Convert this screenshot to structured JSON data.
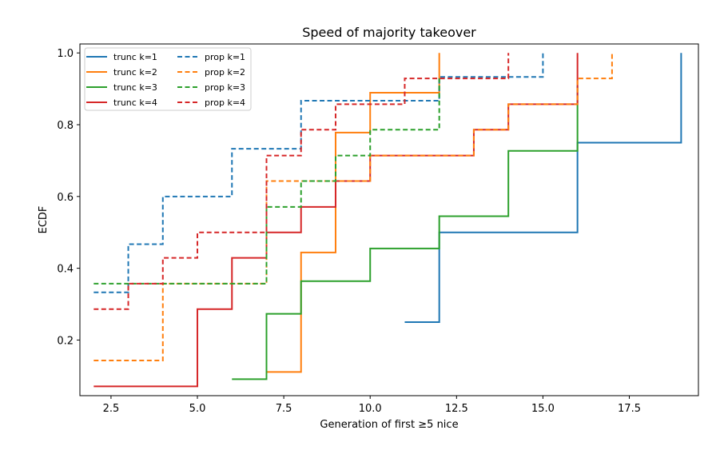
{
  "chart_data": {
    "type": "line",
    "subtype": "step-ecdf",
    "title": "Speed of majority takeover",
    "xlabel": "Generation of first ≥5 nice",
    "ylabel": "ECDF",
    "xlim": [
      1.6,
      19.5
    ],
    "ylim": [
      0.045,
      1.025
    ],
    "xticks": [
      2.5,
      5.0,
      7.5,
      10.0,
      12.5,
      15.0,
      17.5
    ],
    "xtick_labels": [
      "2.5",
      "5.0",
      "7.5",
      "10.0",
      "12.5",
      "15.0",
      "17.5"
    ],
    "yticks": [
      0.2,
      0.4,
      0.6,
      0.8,
      1.0
    ],
    "ytick_labels": [
      "0.2",
      "0.4",
      "0.6",
      "0.8",
      "1.0"
    ],
    "grid": false,
    "legend": {
      "location": "upper-left",
      "columns": 2
    },
    "series": [
      {
        "name": "trunc k=1",
        "color": "#1f77b4",
        "dash": "solid",
        "x": [
          11,
          12,
          16,
          19
        ],
        "y": [
          0.25,
          0.5,
          0.75,
          1.0
        ]
      },
      {
        "name": "trunc k=2",
        "color": "#ff7f0e",
        "dash": "solid",
        "x": [
          7,
          8,
          9,
          10,
          12
        ],
        "y": [
          0.111,
          0.444,
          0.778,
          0.889,
          1.0
        ]
      },
      {
        "name": "trunc k=3",
        "color": "#2ca02c",
        "dash": "solid",
        "x": [
          6,
          7,
          8,
          10,
          12,
          14,
          16
        ],
        "y": [
          0.091,
          0.273,
          0.364,
          0.455,
          0.545,
          0.727,
          0.909
        ]
      },
      {
        "name": "trunc k=4",
        "color": "#d62728",
        "dash": "solid",
        "x": [
          2,
          5,
          6,
          7,
          8,
          9,
          10,
          13,
          14,
          16
        ],
        "y": [
          0.071,
          0.286,
          0.429,
          0.5,
          0.571,
          0.643,
          0.714,
          0.786,
          0.857,
          1.0
        ]
      },
      {
        "name": "prop k=1",
        "color": "#1f77b4",
        "dash": "dashed",
        "x": [
          2,
          3,
          4,
          6,
          8,
          12,
          15
        ],
        "y": [
          0.333,
          0.467,
          0.6,
          0.733,
          0.867,
          0.933,
          1.0
        ]
      },
      {
        "name": "prop k=2",
        "color": "#ff7f0e",
        "dash": "dashed",
        "x": [
          2,
          4,
          7,
          10,
          13,
          14,
          16,
          17
        ],
        "y": [
          0.143,
          0.357,
          0.643,
          0.714,
          0.786,
          0.857,
          0.929,
          1.0
        ]
      },
      {
        "name": "prop k=3",
        "color": "#2ca02c",
        "dash": "dashed",
        "x": [
          2,
          7,
          8,
          9,
          10,
          12
        ],
        "y": [
          0.357,
          0.571,
          0.643,
          0.714,
          0.786,
          0.929
        ]
      },
      {
        "name": "prop k=4",
        "color": "#d62728",
        "dash": "dashed",
        "x": [
          2,
          3,
          4,
          5,
          7,
          8,
          9,
          11,
          14
        ],
        "y": [
          0.286,
          0.357,
          0.429,
          0.5,
          0.714,
          0.786,
          0.857,
          0.929,
          1.0
        ]
      }
    ]
  }
}
